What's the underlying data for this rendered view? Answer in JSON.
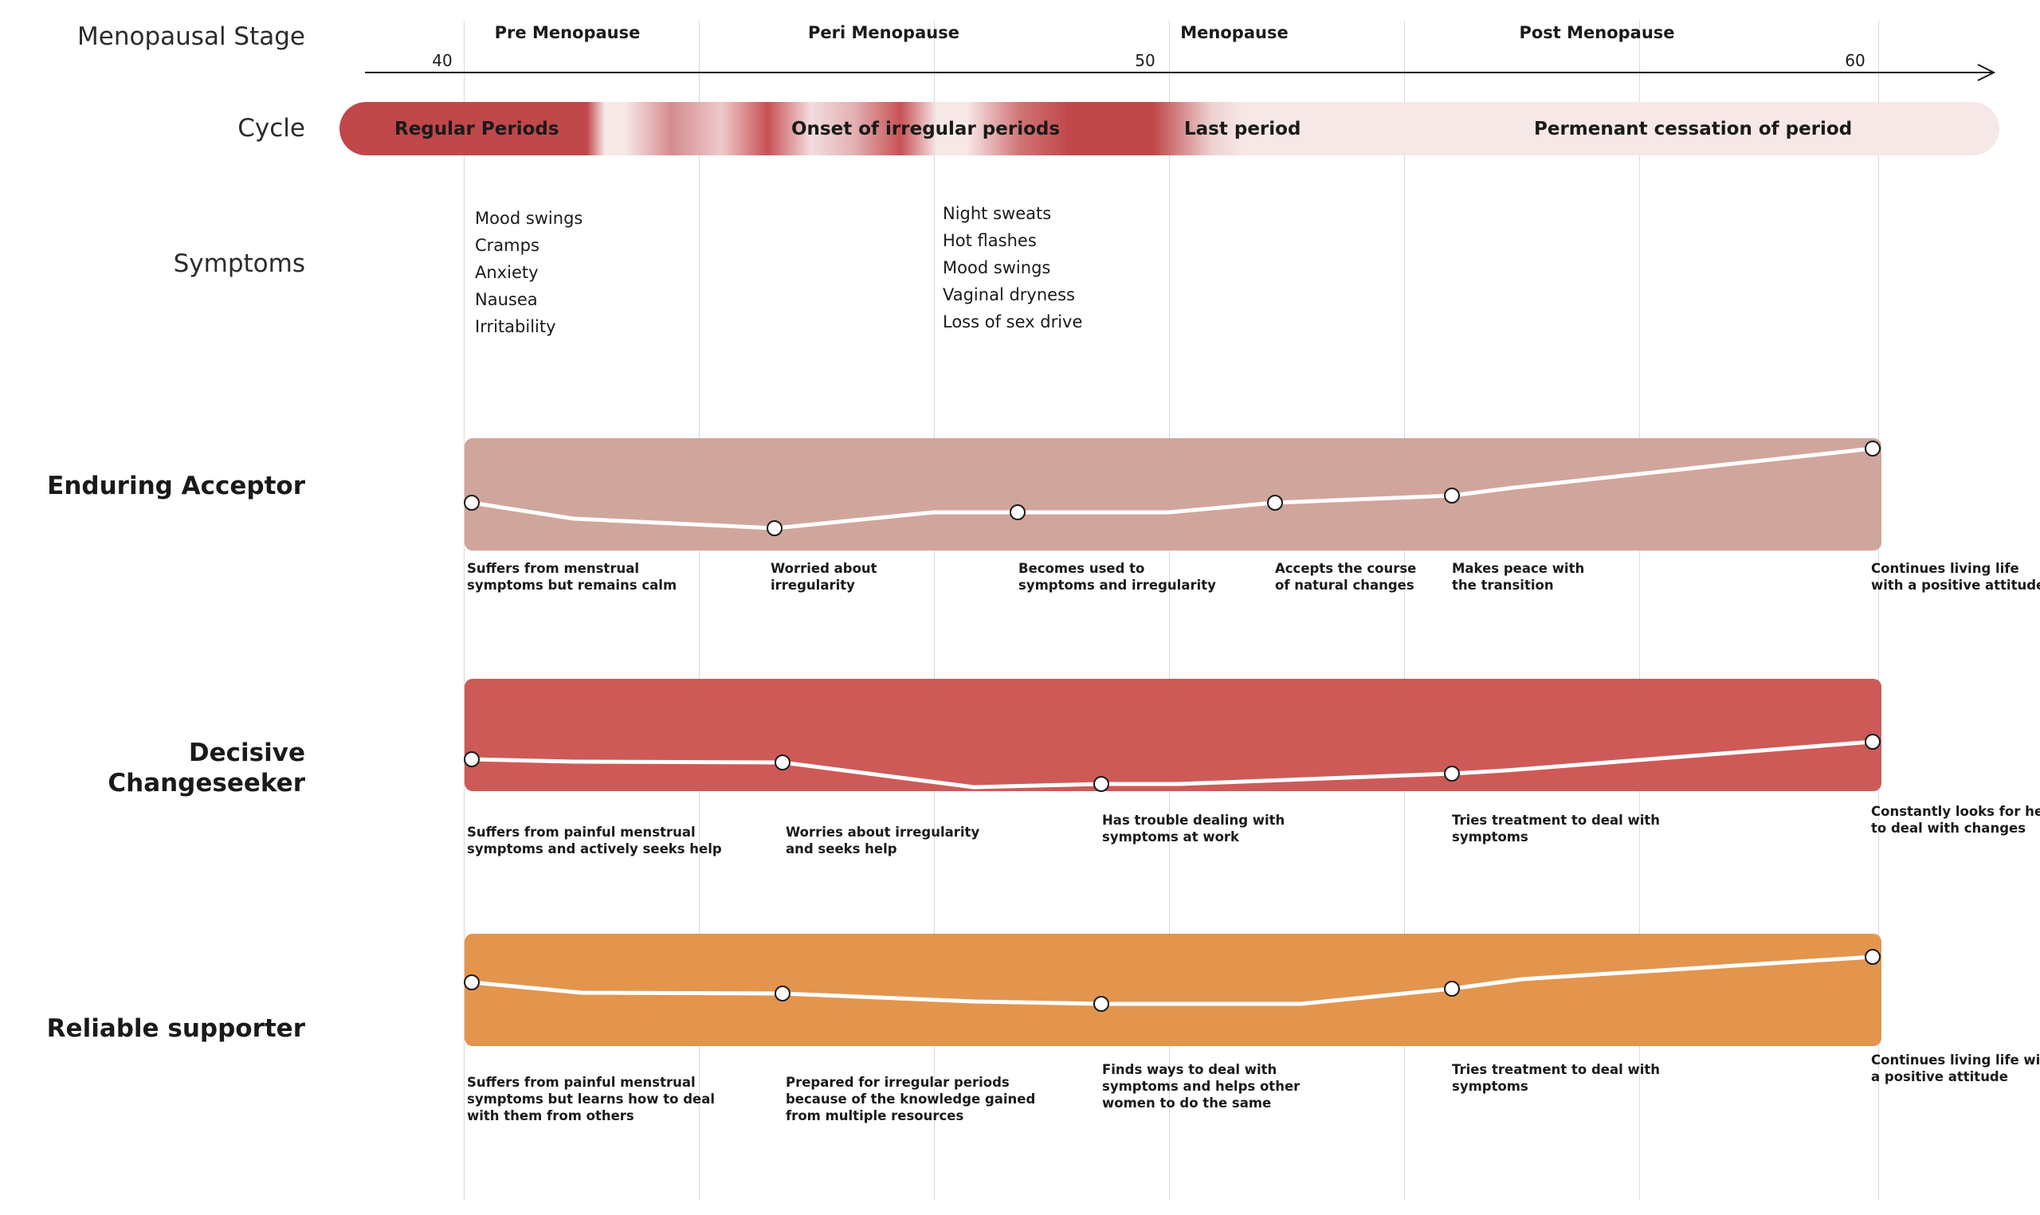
{
  "labels": {
    "stage": "Menopausal Stage",
    "cycle": "Cycle",
    "symptoms": "Symptoms"
  },
  "stages": [
    "Pre Menopause",
    "Peri Menopause",
    "Menopause",
    "Post Menopause"
  ],
  "ages": [
    "40",
    "50",
    "60"
  ],
  "cycle": {
    "segments": [
      "Regular Periods",
      "Onset of irregular periods",
      "Last period",
      "Permenant cessation of period"
    ],
    "colors": {
      "strong": "#c0474a",
      "pale": "#f7e8e8"
    }
  },
  "symptoms": {
    "pre": [
      "Mood swings",
      "Cramps",
      "Anxiety",
      "Nausea",
      "Irritability"
    ],
    "peri": [
      "Night sweats",
      "Hot flashes",
      "Mood swings",
      "Vaginal dryness",
      "Loss of sex drive"
    ]
  },
  "personas": [
    {
      "name": [
        "Enduring Acceptor"
      ],
      "color": "#d0a59c",
      "captions": [
        [
          "Suffers from menstrual",
          "symptoms but remains calm"
        ],
        [
          "Worried about",
          "irregularity"
        ],
        [
          "Becomes used to",
          "symptoms and irregularity"
        ],
        [
          "Accepts the course",
          "of natural changes"
        ],
        [
          "Makes peace with",
          "the transition"
        ],
        [
          "Continues living life",
          "with a positive attitude"
        ]
      ]
    },
    {
      "name": [
        "Decisive",
        "Changeseeker"
      ],
      "color": "#cd5a57",
      "captions": [
        [
          "Suffers from painful menstrual",
          "symptoms and actively seeks help"
        ],
        [
          "Worries about irregularity",
          "and seeks help"
        ],
        [
          "Has trouble dealing with",
          "symptoms at work"
        ],
        [
          "Tries treatment to deal with",
          "symptoms"
        ],
        [
          "Constantly looks for help",
          "to deal with changes"
        ]
      ]
    },
    {
      "name": [
        "Reliable supporter"
      ],
      "color": "#e3954e",
      "captions": [
        [
          "Suffers from painful menstrual",
          "symptoms but learns how to deal",
          "with them from others"
        ],
        [
          "Prepared for irregular periods",
          "because of the knowledge gained",
          "from multiple resources"
        ],
        [
          "Finds ways to deal with",
          "symptoms and helps other",
          "women to do the same"
        ],
        [
          "Tries treatment to deal with",
          "symptoms"
        ],
        [
          "Continues living life with",
          "a positive attitude"
        ]
      ]
    }
  ]
}
